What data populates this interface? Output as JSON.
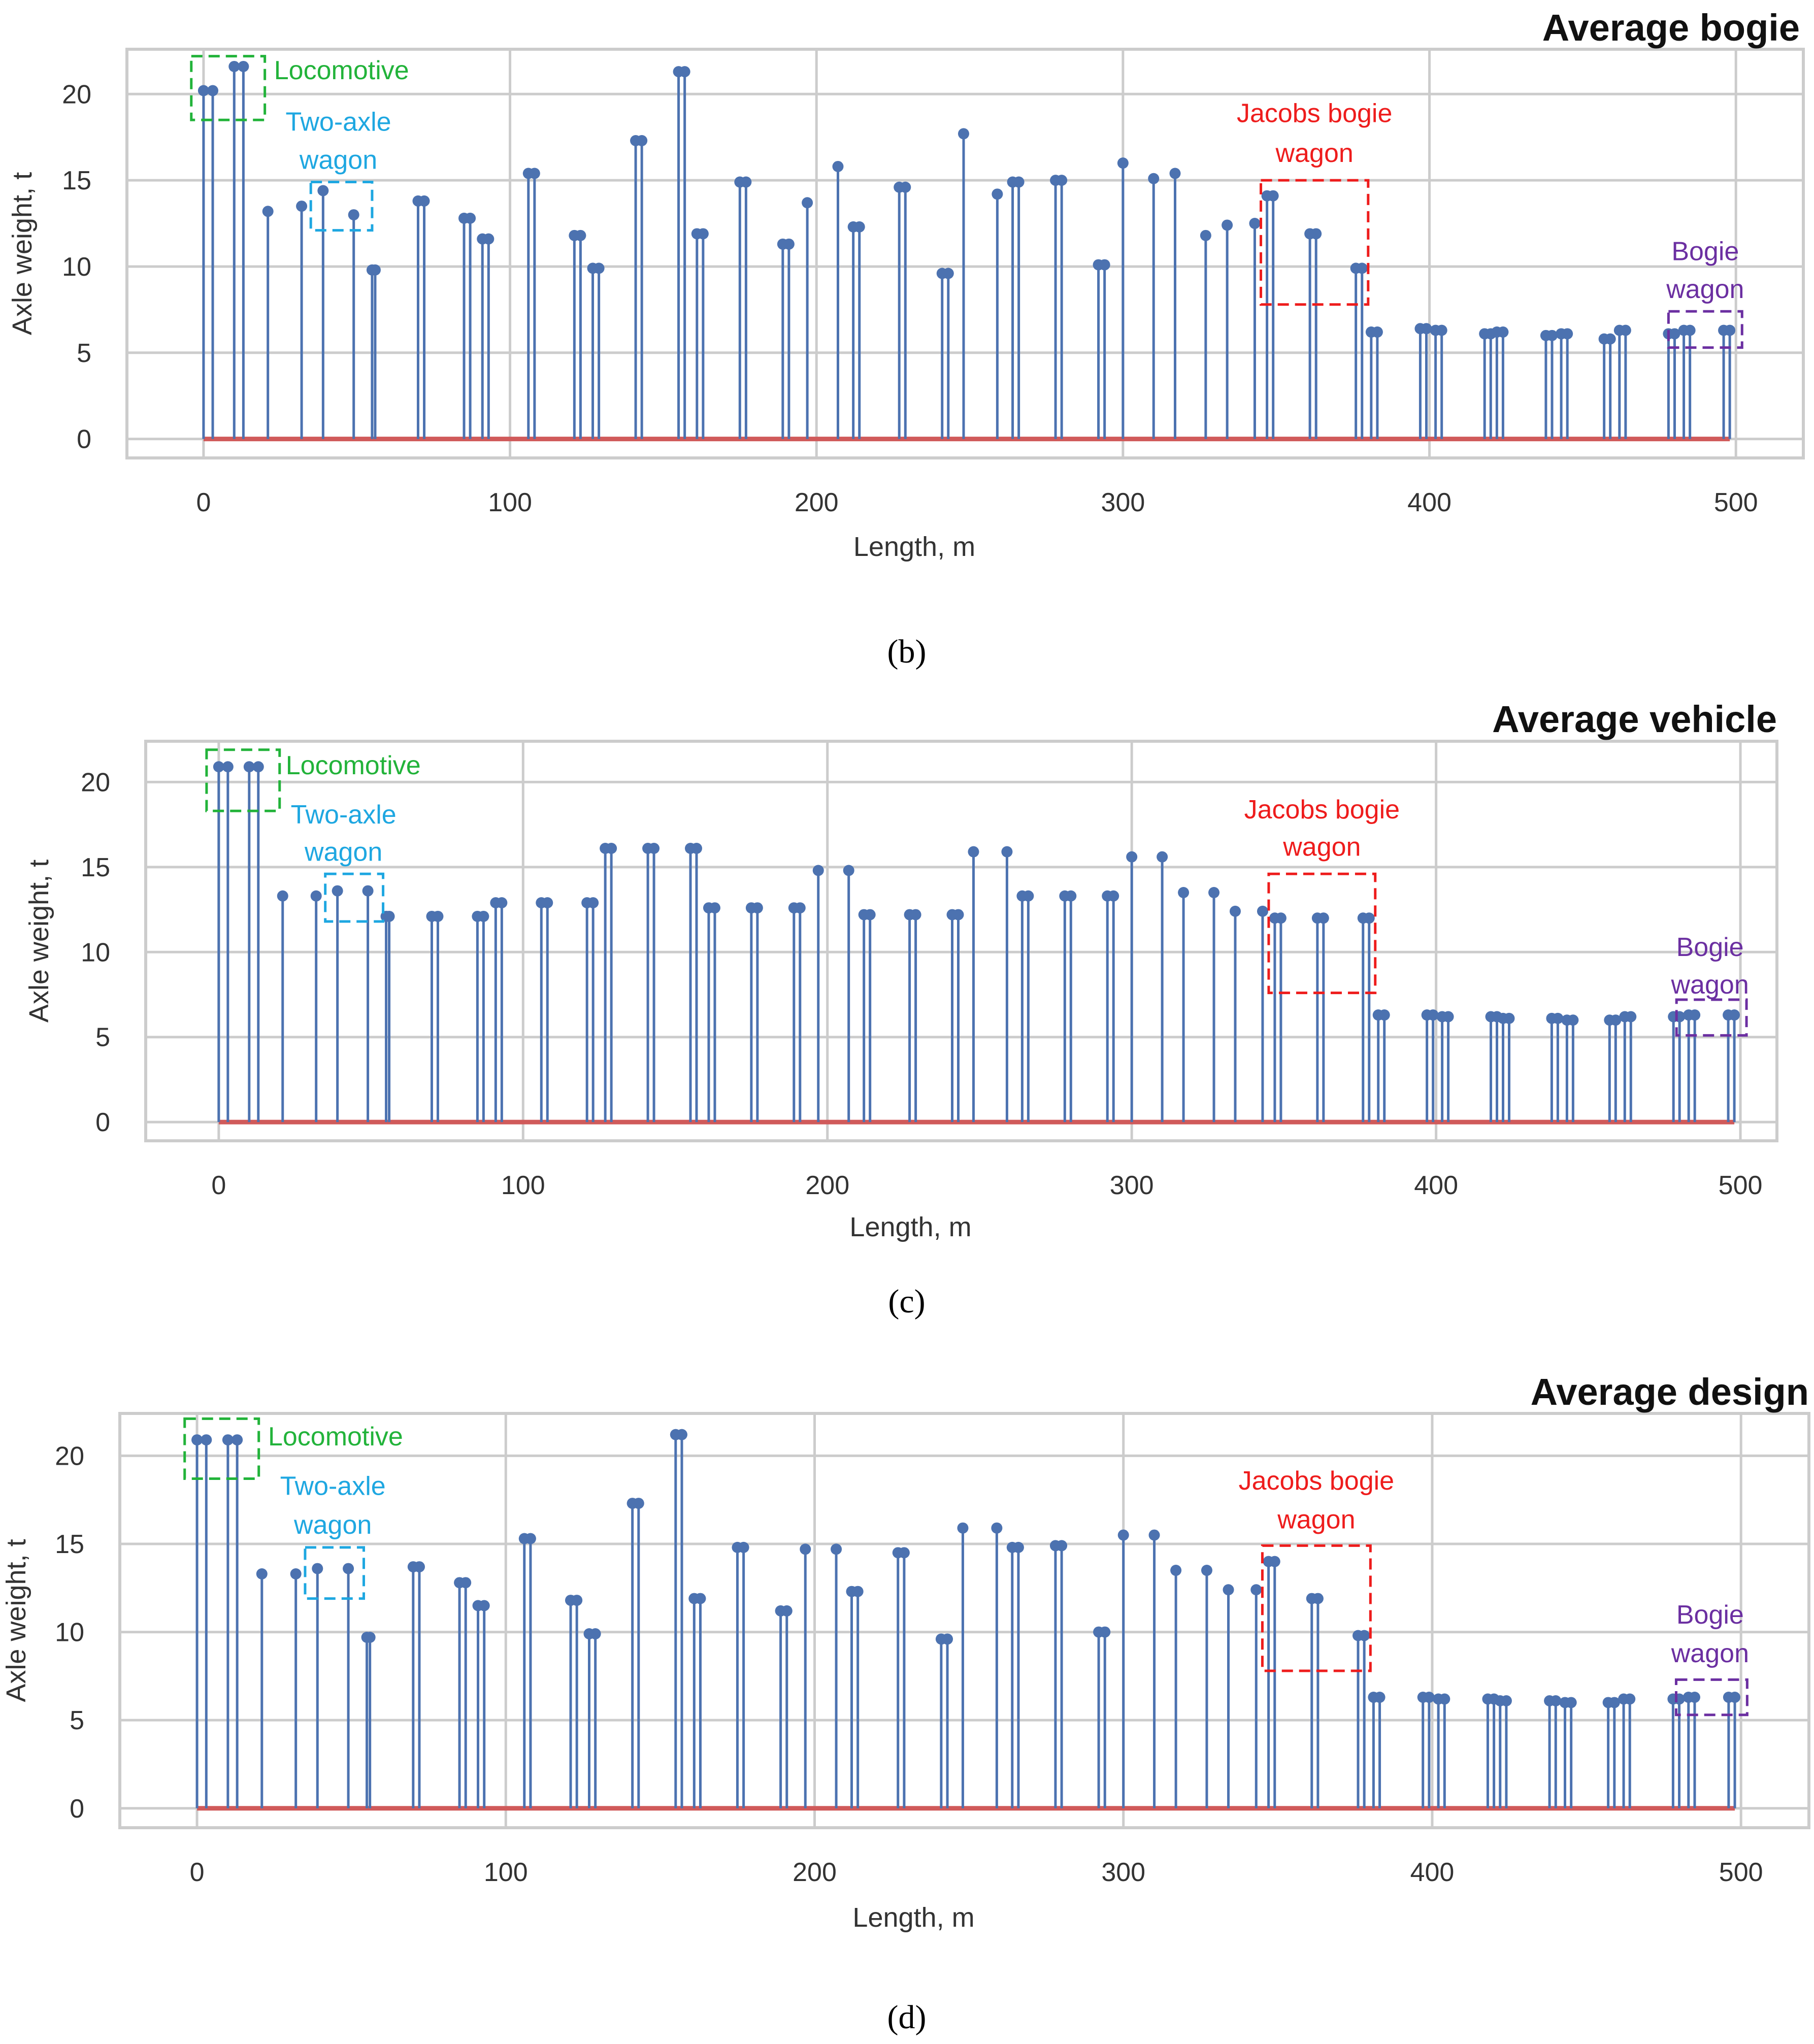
{
  "colors": {
    "stem": "#4c72b0",
    "baseline": "#d05a5a",
    "grid": "#cccccc",
    "locomotive": "#22b33a",
    "two_axle": "#1ea7e1",
    "jacobs": "#ee1c1c",
    "bogie": "#6b2fa1"
  },
  "chart_data": [
    {
      "type": "stem",
      "title": "Average bogie",
      "caption": "(b)",
      "xlabel": "Length, m",
      "ylabel": "Axle weight, t",
      "xlim": [
        -25,
        522
      ],
      "ylim": [
        -1.1,
        22.6
      ],
      "xticks": [
        0,
        100,
        200,
        300,
        400,
        500
      ],
      "yticks": [
        0,
        5,
        10,
        15,
        20
      ],
      "grid": true,
      "annotations": [
        {
          "label": [
            "Locomotive"
          ],
          "color": "locomotive",
          "box_x": [
            -4,
            20
          ],
          "box_y": [
            18.5,
            22.2
          ],
          "label_x": 23,
          "label_y": 21.4,
          "anchor": "start"
        },
        {
          "label": [
            "Two-axle",
            "wagon"
          ],
          "color": "two_axle",
          "box_x": [
            35,
            55
          ],
          "box_y": [
            12.1,
            14.9
          ],
          "label_x": 44,
          "label_y": [
            18.4,
            16.2
          ],
          "anchor": "middle"
        },
        {
          "label": [
            "Jacobs bogie",
            "wagon"
          ],
          "color": "jacobs",
          "box_x": [
            345,
            380
          ],
          "box_y": [
            7.8,
            15.0
          ],
          "label_x": 362.5,
          "label_y": [
            18.9,
            16.6
          ],
          "anchor": "middle"
        },
        {
          "label": [
            "Bogie",
            "wagon"
          ],
          "color": "bogie",
          "box_x": [
            478,
            502
          ],
          "box_y": [
            5.3,
            7.4
          ],
          "label_x": 490,
          "label_y": [
            10.9,
            8.7
          ],
          "anchor": "middle"
        }
      ],
      "x": [
        0,
        3,
        10,
        13,
        21,
        32,
        39,
        49,
        55,
        56,
        70,
        72,
        85,
        87,
        91,
        93,
        106,
        108,
        121,
        123,
        127,
        129,
        141,
        143,
        155,
        157,
        161,
        163,
        175,
        177,
        189,
        191,
        197,
        207,
        212,
        214,
        227,
        229,
        241,
        243,
        248,
        259,
        264,
        266,
        278,
        280,
        292,
        294,
        300,
        310,
        317,
        327,
        334,
        343,
        347,
        349,
        361,
        363,
        376,
        378,
        381,
        383,
        397,
        399,
        402,
        404,
        418,
        420,
        422,
        424,
        438,
        440,
        443,
        445,
        457,
        459,
        462,
        464,
        478,
        480,
        483,
        485,
        496,
        498
      ],
      "y": [
        20.2,
        20.2,
        21.6,
        21.6,
        13.2,
        13.5,
        14.4,
        13.0,
        9.8,
        9.8,
        13.8,
        13.8,
        12.8,
        12.8,
        11.6,
        11.6,
        15.4,
        15.4,
        11.8,
        11.8,
        9.9,
        9.9,
        17.3,
        17.3,
        21.3,
        21.3,
        11.9,
        11.9,
        14.9,
        14.9,
        11.3,
        11.3,
        13.7,
        15.8,
        12.3,
        12.3,
        14.6,
        14.6,
        9.6,
        9.6,
        17.7,
        14.2,
        14.9,
        14.9,
        15.0,
        15.0,
        10.1,
        10.1,
        16.0,
        15.1,
        15.4,
        11.8,
        12.4,
        12.5,
        14.1,
        14.1,
        11.9,
        11.9,
        9.9,
        9.9,
        6.2,
        6.2,
        6.4,
        6.4,
        6.3,
        6.3,
        6.1,
        6.1,
        6.2,
        6.2,
        6.0,
        6.0,
        6.1,
        6.1,
        5.8,
        5.8,
        6.3,
        6.3,
        6.1,
        6.1,
        6.3,
        6.3,
        6.3,
        6.3
      ]
    },
    {
      "type": "stem",
      "title": "Average vehicle",
      "caption": "(c)",
      "xlabel": "Length, m",
      "ylabel": "Axle weight, t",
      "xlim": [
        -24,
        512
      ],
      "ylim": [
        -1.1,
        22.4
      ],
      "xticks": [
        0,
        100,
        200,
        300,
        400,
        500
      ],
      "yticks": [
        0,
        5,
        10,
        15,
        20
      ],
      "grid": true,
      "annotations": [
        {
          "label": [
            "Locomotive"
          ],
          "color": "locomotive",
          "box_x": [
            -4,
            20
          ],
          "box_y": [
            18.3,
            21.9
          ],
          "label_x": 22,
          "label_y": 21.0,
          "anchor": "start"
        },
        {
          "label": [
            "Two-axle",
            "wagon"
          ],
          "color": "two_axle",
          "box_x": [
            35,
            54
          ],
          "box_y": [
            11.8,
            14.6
          ],
          "label_x": 41,
          "label_y": [
            18.1,
            15.9
          ],
          "anchor": "middle"
        },
        {
          "label": [
            "Jacobs bogie",
            "wagon"
          ],
          "color": "jacobs",
          "box_x": [
            345,
            380
          ],
          "box_y": [
            7.6,
            14.6
          ],
          "label_x": 362.5,
          "label_y": [
            18.4,
            16.2
          ],
          "anchor": "middle"
        },
        {
          "label": [
            "Bogie",
            "wagon"
          ],
          "color": "bogie",
          "box_x": [
            479,
            502
          ],
          "box_y": [
            5.1,
            7.2
          ],
          "label_x": 490,
          "label_y": [
            10.3,
            8.1
          ],
          "anchor": "middle"
        }
      ],
      "x": [
        0,
        3,
        10,
        13,
        21,
        32,
        39,
        49,
        55,
        56,
        70,
        72,
        85,
        87,
        91,
        93,
        106,
        108,
        121,
        123,
        127,
        129,
        141,
        143,
        155,
        157,
        161,
        163,
        175,
        177,
        189,
        191,
        197,
        207,
        212,
        214,
        227,
        229,
        241,
        243,
        248,
        259,
        264,
        266,
        278,
        280,
        292,
        294,
        300,
        310,
        317,
        327,
        334,
        343,
        347,
        349,
        361,
        363,
        376,
        378,
        381,
        383,
        397,
        399,
        402,
        404,
        418,
        420,
        422,
        424,
        438,
        440,
        443,
        445,
        457,
        459,
        462,
        464,
        478,
        480,
        483,
        485,
        496,
        498
      ],
      "y": [
        20.9,
        20.9,
        20.9,
        20.9,
        13.3,
        13.3,
        13.6,
        13.6,
        12.1,
        12.1,
        12.1,
        12.1,
        12.1,
        12.1,
        12.9,
        12.9,
        12.9,
        12.9,
        12.9,
        12.9,
        16.1,
        16.1,
        16.1,
        16.1,
        16.1,
        16.1,
        12.6,
        12.6,
        12.6,
        12.6,
        12.6,
        12.6,
        14.8,
        14.8,
        12.2,
        12.2,
        12.2,
        12.2,
        12.2,
        12.2,
        15.9,
        15.9,
        13.3,
        13.3,
        13.3,
        13.3,
        13.3,
        13.3,
        15.6,
        15.6,
        13.5,
        13.5,
        12.4,
        12.4,
        12.0,
        12.0,
        12.0,
        12.0,
        12.0,
        12.0,
        6.3,
        6.3,
        6.3,
        6.3,
        6.2,
        6.2,
        6.2,
        6.2,
        6.1,
        6.1,
        6.1,
        6.1,
        6.0,
        6.0,
        6.0,
        6.0,
        6.2,
        6.2,
        6.2,
        6.2,
        6.3,
        6.3,
        6.3,
        6.3
      ]
    },
    {
      "type": "stem",
      "title": "Average design",
      "caption": "(d)",
      "xlabel": "Length, m",
      "ylabel": "Axle weight, t",
      "xlim": [
        -25,
        522
      ],
      "ylim": [
        -1.1,
        22.4
      ],
      "xticks": [
        0,
        100,
        200,
        300,
        400,
        500
      ],
      "yticks": [
        0,
        5,
        10,
        15,
        20
      ],
      "grid": true,
      "annotations": [
        {
          "label": [
            "Locomotive"
          ],
          "color": "locomotive",
          "box_x": [
            -4,
            20
          ],
          "box_y": [
            18.7,
            22.1
          ],
          "label_x": 23,
          "label_y": 21.1,
          "anchor": "start"
        },
        {
          "label": [
            "Two-axle",
            "wagon"
          ],
          "color": "two_axle",
          "box_x": [
            35,
            54
          ],
          "box_y": [
            11.9,
            14.8
          ],
          "label_x": 44,
          "label_y": [
            18.3,
            16.1
          ],
          "anchor": "middle"
        },
        {
          "label": [
            "Jacobs bogie",
            "wagon"
          ],
          "color": "jacobs",
          "box_x": [
            345,
            380
          ],
          "box_y": [
            7.8,
            14.9
          ],
          "label_x": 362.5,
          "label_y": [
            18.6,
            16.4
          ],
          "anchor": "middle"
        },
        {
          "label": [
            "Bogie",
            "wagon"
          ],
          "color": "bogie",
          "box_x": [
            479,
            502
          ],
          "box_y": [
            5.3,
            7.3
          ],
          "label_x": 490,
          "label_y": [
            11.0,
            8.8
          ],
          "anchor": "middle"
        }
      ],
      "x": [
        0,
        3,
        10,
        13,
        21,
        32,
        39,
        49,
        55,
        56,
        70,
        72,
        85,
        87,
        91,
        93,
        106,
        108,
        121,
        123,
        127,
        129,
        141,
        143,
        155,
        157,
        161,
        163,
        175,
        177,
        189,
        191,
        197,
        207,
        212,
        214,
        227,
        229,
        241,
        243,
        248,
        259,
        264,
        266,
        278,
        280,
        292,
        294,
        300,
        310,
        317,
        327,
        334,
        343,
        347,
        349,
        361,
        363,
        376,
        378,
        381,
        383,
        397,
        399,
        402,
        404,
        418,
        420,
        422,
        424,
        438,
        440,
        443,
        445,
        457,
        459,
        462,
        464,
        478,
        480,
        483,
        485,
        496,
        498
      ],
      "y": [
        20.9,
        20.9,
        20.9,
        20.9,
        13.3,
        13.3,
        13.6,
        13.6,
        9.7,
        9.7,
        13.7,
        13.7,
        12.8,
        12.8,
        11.5,
        11.5,
        15.3,
        15.3,
        11.8,
        11.8,
        9.9,
        9.9,
        17.3,
        17.3,
        21.2,
        21.2,
        11.9,
        11.9,
        14.8,
        14.8,
        11.2,
        11.2,
        14.7,
        14.7,
        12.3,
        12.3,
        14.5,
        14.5,
        9.6,
        9.6,
        15.9,
        15.9,
        14.8,
        14.8,
        14.9,
        14.9,
        10.0,
        10.0,
        15.5,
        15.5,
        13.5,
        13.5,
        12.4,
        12.4,
        14.0,
        14.0,
        11.9,
        11.9,
        9.8,
        9.8,
        6.3,
        6.3,
        6.3,
        6.3,
        6.2,
        6.2,
        6.2,
        6.2,
        6.1,
        6.1,
        6.1,
        6.1,
        6.0,
        6.0,
        6.0,
        6.0,
        6.2,
        6.2,
        6.2,
        6.2,
        6.3,
        6.3,
        6.3,
        6.3
      ]
    }
  ]
}
